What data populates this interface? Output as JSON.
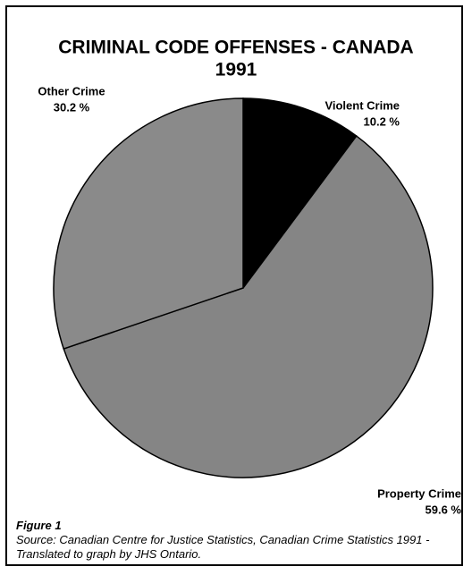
{
  "chart_data": {
    "type": "pie",
    "title": [
      "CRIMINAL CODE OFFENSES  -  CANADA",
      "1991"
    ],
    "categories": [
      "Violent Crime",
      "Property Crime",
      "Other Crime"
    ],
    "values": [
      10.2,
      59.6,
      30.2
    ],
    "value_labels": [
      "10.2 %",
      "59.6 %",
      "30.2 %"
    ],
    "colors": [
      "#000000",
      "#858585",
      "#8a8a8a"
    ]
  },
  "footnote": {
    "figure": "Figure 1",
    "source": "Source:   Canadian Centre for Justice Statistics, Canadian Crime Statistics 1991  - Translated to graph by JHS Ontario."
  }
}
